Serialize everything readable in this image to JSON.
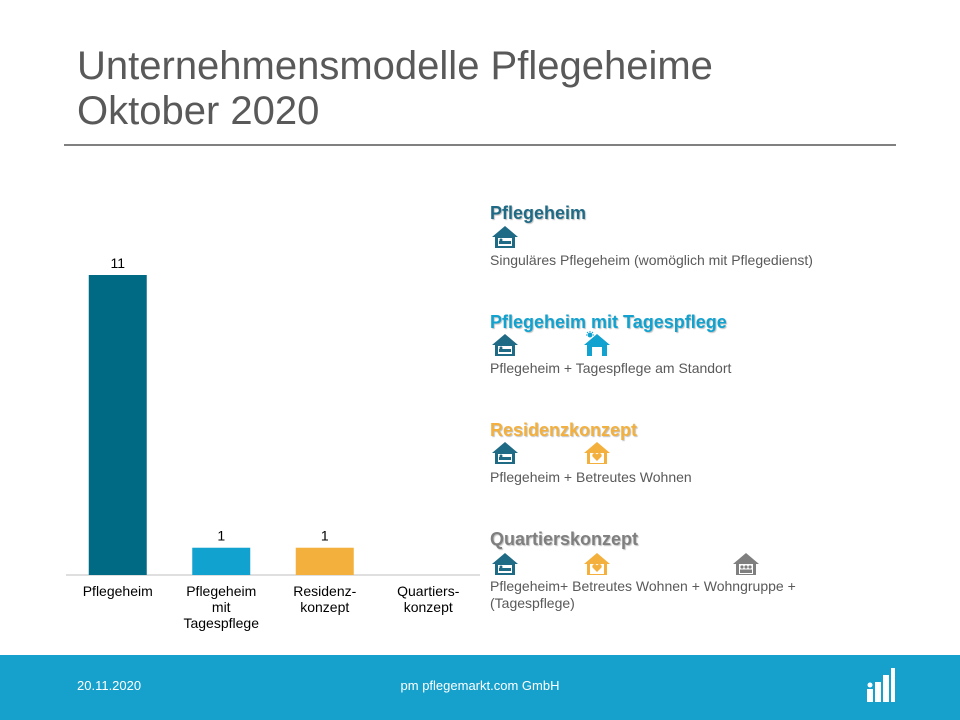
{
  "header": {
    "title_line1": "Unternehmensmodelle Pflegeheime",
    "title_line2": "Oktober 2020"
  },
  "chart_data": {
    "type": "bar",
    "categories": [
      "Pflegeheim",
      "Pflegeheim mit Tagespflege",
      "Residenz-konzept",
      "Quartiers-konzept"
    ],
    "category_label_lines": [
      [
        "Pflegeheim"
      ],
      [
        "Pflegeheim",
        "mit",
        "Tagespflege"
      ],
      [
        "Residenz-",
        "konzept"
      ],
      [
        "Quartiers-",
        "konzept"
      ]
    ],
    "values": [
      11,
      1,
      1,
      0
    ],
    "data_labels": [
      "11",
      "1",
      "1",
      ""
    ],
    "colors": [
      "#006a85",
      "#12a2cf",
      "#f4b03c",
      "#7f7f7f"
    ],
    "title": "",
    "xlabel": "",
    "ylabel": "",
    "ylim": [
      0,
      11
    ],
    "grid": false,
    "legend": "right"
  },
  "legend": [
    {
      "title": "Pflegeheim",
      "color": "#006a85",
      "icons": [
        "house-bed-icon"
      ],
      "description": "Singuläres Pflegeheim (womöglich mit Pflegedienst)"
    },
    {
      "title": "Pflegeheim mit Tagespflege",
      "color": "#12a2cf",
      "icons": [
        "house-bed-icon",
        "house-sun-icon"
      ],
      "description": "Pflegeheim + Tagespflege am Standort"
    },
    {
      "title": "Residenzkonzept",
      "color": "#f4b03c",
      "icons": [
        "house-bed-icon",
        "house-heart-icon"
      ],
      "description": "Pflegeheim + Betreutes Wohnen"
    },
    {
      "title": "Quartierskonzept",
      "color": "#7f7f7f",
      "icons": [
        "house-bed-icon",
        "house-heart-icon",
        "house-group-icon"
      ],
      "description": "Pflegeheim+ Betreutes Wohnen + Wohngruppe + (Tagespflege)"
    }
  ],
  "footer": {
    "date": "20.11.2020",
    "company": "pm pflegemarkt.com GmbH"
  }
}
